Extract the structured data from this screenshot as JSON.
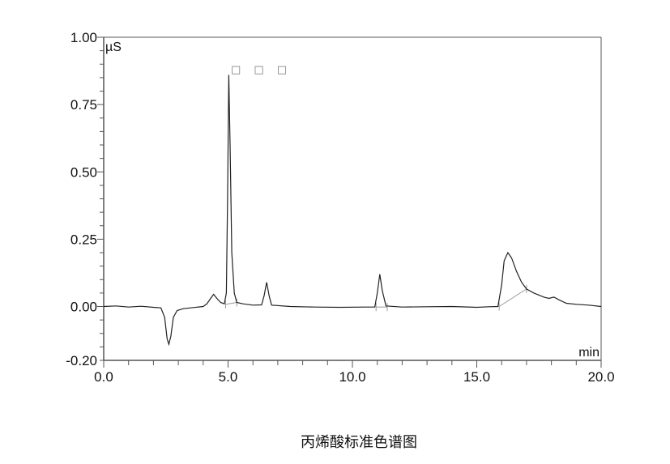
{
  "chart_data": {
    "type": "line",
    "title": "丙烯酸标准色谱图",
    "xlabel": "min",
    "ylabel": "µS",
    "xlim": [
      0,
      20
    ],
    "ylim": [
      -0.2,
      1.0
    ],
    "x_ticks": [
      "0.0",
      "5.0",
      "10.0",
      "15.0",
      "20.0"
    ],
    "y_ticks": [
      "1.00",
      "0.75",
      "0.50",
      "0.25",
      "0.00",
      "-0.20"
    ],
    "peak_label": "□ □ □",
    "grid": false,
    "colors": {
      "trace": "#222222",
      "baseline": "#999999",
      "axis": "#555555"
    },
    "series": [
      {
        "points": [
          [
            0,
            0
          ],
          [
            0.5,
            0.002
          ],
          [
            1,
            -0.002
          ],
          [
            1.5,
            0.001
          ],
          [
            2,
            -0.003
          ],
          [
            2.3,
            -0.005
          ],
          [
            2.45,
            -0.04
          ],
          [
            2.55,
            -0.12
          ],
          [
            2.62,
            -0.14
          ],
          [
            2.7,
            -0.11
          ],
          [
            2.8,
            -0.04
          ],
          [
            2.95,
            -0.015
          ],
          [
            3.2,
            -0.008
          ],
          [
            3.6,
            -0.004
          ],
          [
            4.0,
            0.0
          ],
          [
            4.15,
            0.01
          ],
          [
            4.3,
            0.03
          ],
          [
            4.42,
            0.045
          ],
          [
            4.55,
            0.03
          ],
          [
            4.7,
            0.015
          ],
          [
            4.85,
            0.01
          ],
          [
            4.93,
            0.05
          ],
          [
            4.98,
            0.4
          ],
          [
            5.03,
            0.86
          ],
          [
            5.08,
            0.6
          ],
          [
            5.15,
            0.2
          ],
          [
            5.25,
            0.05
          ],
          [
            5.35,
            0.015
          ],
          [
            5.6,
            0.01
          ],
          [
            6.0,
            0.005
          ],
          [
            6.35,
            0.006
          ],
          [
            6.45,
            0.04
          ],
          [
            6.55,
            0.09
          ],
          [
            6.65,
            0.04
          ],
          [
            6.75,
            0.005
          ],
          [
            7.5,
            0.0
          ],
          [
            8.5,
            -0.002
          ],
          [
            9.5,
            -0.003
          ],
          [
            10.5,
            -0.002
          ],
          [
            10.9,
            -0.002
          ],
          [
            11.0,
            0.05
          ],
          [
            11.1,
            0.12
          ],
          [
            11.2,
            0.06
          ],
          [
            11.35,
            0.002
          ],
          [
            12,
            -0.002
          ],
          [
            13,
            -0.001
          ],
          [
            14,
            0.0
          ],
          [
            15,
            -0.003
          ],
          [
            15.5,
            -0.001
          ],
          [
            15.85,
            0.0
          ],
          [
            16.0,
            0.08
          ],
          [
            16.1,
            0.17
          ],
          [
            16.25,
            0.2
          ],
          [
            16.4,
            0.18
          ],
          [
            16.6,
            0.13
          ],
          [
            16.8,
            0.09
          ],
          [
            17.0,
            0.065
          ],
          [
            17.3,
            0.05
          ],
          [
            17.7,
            0.035
          ],
          [
            17.9,
            0.03
          ],
          [
            18.1,
            0.035
          ],
          [
            18.3,
            0.025
          ],
          [
            18.6,
            0.012
          ],
          [
            19.0,
            0.008
          ],
          [
            19.5,
            0.005
          ],
          [
            20,
            0.0
          ]
        ]
      }
    ],
    "integration_baselines": [
      [
        [
          4.9,
          0.008
        ],
        [
          5.35,
          0.015
        ]
      ],
      [
        [
          10.95,
          -0.002
        ],
        [
          11.4,
          -0.002
        ]
      ],
      [
        [
          15.9,
          0.0
        ],
        [
          17.0,
          0.065
        ]
      ]
    ]
  }
}
